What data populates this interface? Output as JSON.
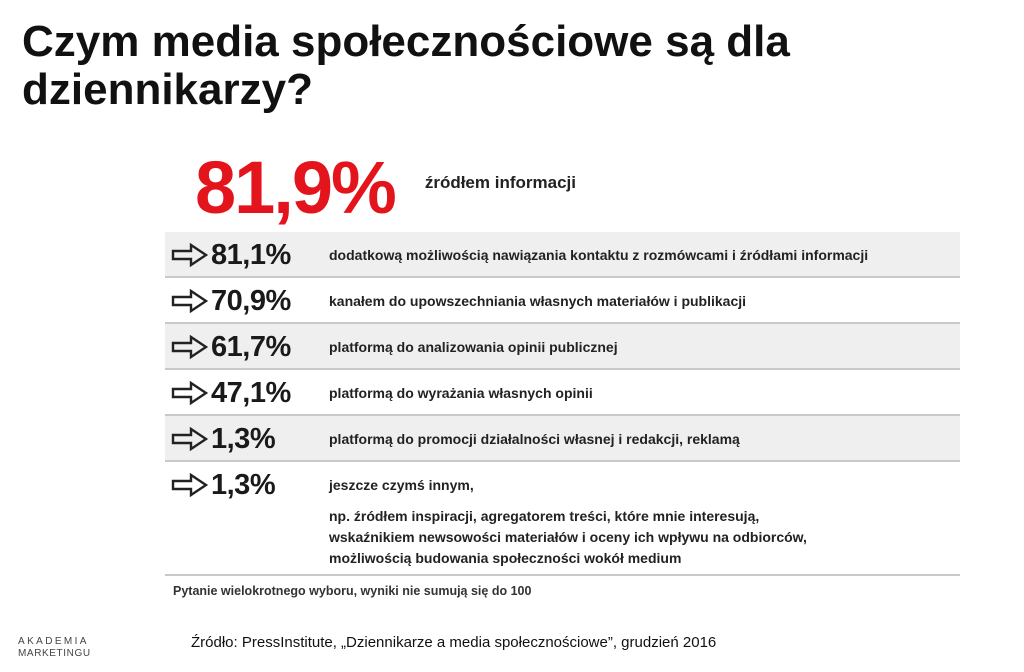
{
  "title": "Czym media społecznościowe są dla dziennikarzy?",
  "colors": {
    "accent": "#e3141c",
    "row_shade": "#efefef",
    "divider": "#c9c9c9"
  },
  "chart_data": {
    "type": "table",
    "headline": {
      "value": "81,9%",
      "label": "źródłem informacji"
    },
    "rows": [
      {
        "value": "81,1%",
        "label": "dodatkową możliwością nawiązania kontaktu z rozmówcami i źródłami informacji",
        "icon": "arrow-right-icon"
      },
      {
        "value": "70,9%",
        "label": "kanałem do upowszechniania własnych materiałów i publikacji",
        "icon": "arrow-right-icon"
      },
      {
        "value": "61,7%",
        "label": "platformą do analizowania opinii publicznej",
        "icon": "arrow-right-icon"
      },
      {
        "value": "47,1%",
        "label": "platformą do wyrażania własnych opinii",
        "icon": "arrow-right-icon"
      },
      {
        "value": "1,3%",
        "label": "platformą do promocji działalności własnej i redakcji, reklamą",
        "icon": "arrow-right-icon"
      },
      {
        "value": "1,3%",
        "label": "jeszcze czymś innym,",
        "note": [
          "np. źródłem inspiracji, agregatorem treści, które mnie interesują,",
          "wskaźnikiem newsowości materiałów i oceny ich wpływu na odbiorców,",
          "możliwością budowania społeczności wokół medium"
        ],
        "icon": "arrow-right-icon"
      }
    ],
    "footnote": "Pytanie wielokrotnego wyboru, wyniki nie sumują się do 100"
  },
  "logo": {
    "line1": "AKADEMIA",
    "line2": "MARKETINGU"
  },
  "source": "Źródło: PressInstitute, „Dziennikarze a media społecznościowe”, grudzień 2016"
}
